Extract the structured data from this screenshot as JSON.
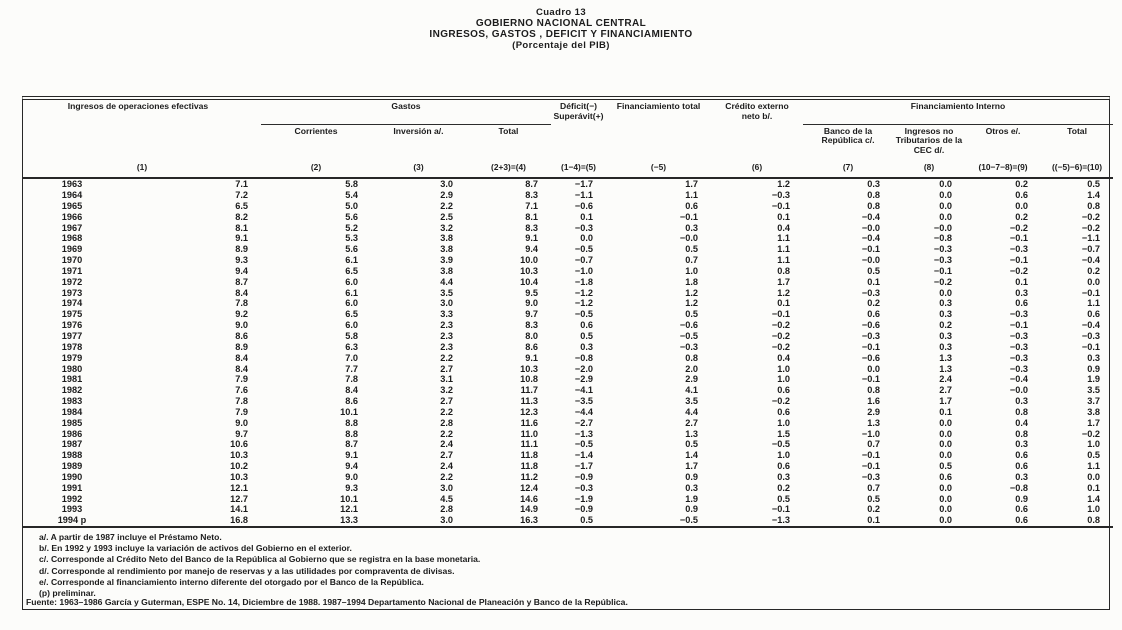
{
  "title": {
    "cuadro": "Cuadro 13",
    "org": "GOBIERNO NACIONAL CENTRAL",
    "subject": "INGRESOS, GASTOS , DEFICIT Y FINANCIAMIENTO",
    "unit": "(Porcentaje del PIB)"
  },
  "table": {
    "group_headers": {
      "gastos": "Gastos",
      "fin_interno": "Financiamiento Interno"
    },
    "headers": {
      "ingresos": "Ingresos de operaciones efectivas",
      "corrientes": "Corrientes",
      "inversion": "Inversión a/.",
      "total_gastos": "Total",
      "deficit": "Déficit(−) Superávit(+)",
      "fin_total": "Financiamiento total",
      "credito_externo": "Crédito externo neto b/.",
      "banco_rep": "Banco de la República c/.",
      "ingresos_cec": "Ingresos no Tributarios de la CEC d/.",
      "otros": "Otros e/.",
      "total_interno": "Total"
    },
    "formulas": [
      "(1)",
      "(2)",
      "(3)",
      "(2+3)=(4)",
      "(1−4)=(5)",
      "(−5)",
      "(6)",
      "(7)",
      "(8)",
      "(10−7−8)=(9)",
      "((−5)−6)=(10)"
    ],
    "rows": [
      [
        "1963",
        "7.1",
        "5.8",
        "3.0",
        "8.7",
        "−1.7",
        "1.7",
        "1.2",
        "0.3",
        "0.0",
        "0.2",
        "0.5"
      ],
      [
        "1964",
        "7.2",
        "5.4",
        "2.9",
        "8.3",
        "−1.1",
        "1.1",
        "−0.3",
        "0.8",
        "0.0",
        "0.6",
        "1.4"
      ],
      [
        "1965",
        "6.5",
        "5.0",
        "2.2",
        "7.1",
        "−0.6",
        "0.6",
        "−0.1",
        "0.8",
        "0.0",
        "0.0",
        "0.8"
      ],
      [
        "1966",
        "8.2",
        "5.6",
        "2.5",
        "8.1",
        "0.1",
        "−0.1",
        "0.1",
        "−0.4",
        "0.0",
        "0.2",
        "−0.2"
      ],
      [
        "1967",
        "8.1",
        "5.2",
        "3.2",
        "8.3",
        "−0.3",
        "0.3",
        "0.4",
        "−0.0",
        "−0.0",
        "−0.2",
        "−0.2"
      ],
      [
        "1968",
        "9.1",
        "5.3",
        "3.8",
        "9.1",
        "0.0",
        "−0.0",
        "1.1",
        "−0.4",
        "−0.8",
        "−0.1",
        "−1.1"
      ],
      [
        "1969",
        "8.9",
        "5.6",
        "3.8",
        "9.4",
        "−0.5",
        "0.5",
        "1.1",
        "−0.1",
        "−0.3",
        "−0.3",
        "−0.7"
      ],
      [
        "1970",
        "9.3",
        "6.1",
        "3.9",
        "10.0",
        "−0.7",
        "0.7",
        "1.1",
        "−0.0",
        "−0.3",
        "−0.1",
        "−0.4"
      ],
      [
        "1971",
        "9.4",
        "6.5",
        "3.8",
        "10.3",
        "−1.0",
        "1.0",
        "0.8",
        "0.5",
        "−0.1",
        "−0.2",
        "0.2"
      ],
      [
        "1972",
        "8.7",
        "6.0",
        "4.4",
        "10.4",
        "−1.8",
        "1.8",
        "1.7",
        "0.1",
        "−0.2",
        "0.1",
        "0.0"
      ],
      [
        "1973",
        "8.4",
        "6.1",
        "3.5",
        "9.5",
        "−1.2",
        "1.2",
        "1.2",
        "−0.3",
        "0.0",
        "0.3",
        "−0.1"
      ],
      [
        "1974",
        "7.8",
        "6.0",
        "3.0",
        "9.0",
        "−1.2",
        "1.2",
        "0.1",
        "0.2",
        "0.3",
        "0.6",
        "1.1"
      ],
      [
        "1975",
        "9.2",
        "6.5",
        "3.3",
        "9.7",
        "−0.5",
        "0.5",
        "−0.1",
        "0.6",
        "0.3",
        "−0.3",
        "0.6"
      ],
      [
        "1976",
        "9.0",
        "6.0",
        "2.3",
        "8.3",
        "0.6",
        "−0.6",
        "−0.2",
        "−0.6",
        "0.2",
        "−0.1",
        "−0.4"
      ],
      [
        "1977",
        "8.6",
        "5.8",
        "2.3",
        "8.0",
        "0.5",
        "−0.5",
        "−0.2",
        "−0.3",
        "0.3",
        "−0.3",
        "−0.3"
      ],
      [
        "1978",
        "8.9",
        "6.3",
        "2.3",
        "8.6",
        "0.3",
        "−0.3",
        "−0.2",
        "−0.1",
        "0.3",
        "−0.3",
        "−0.1"
      ],
      [
        "1979",
        "8.4",
        "7.0",
        "2.2",
        "9.1",
        "−0.8",
        "0.8",
        "0.4",
        "−0.6",
        "1.3",
        "−0.3",
        "0.3"
      ],
      [
        "1980",
        "8.4",
        "7.7",
        "2.7",
        "10.3",
        "−2.0",
        "2.0",
        "1.0",
        "0.0",
        "1.3",
        "−0.3",
        "0.9"
      ],
      [
        "1981",
        "7.9",
        "7.8",
        "3.1",
        "10.8",
        "−2.9",
        "2.9",
        "1.0",
        "−0.1",
        "2.4",
        "−0.4",
        "1.9"
      ],
      [
        "1982",
        "7.6",
        "8.4",
        "3.2",
        "11.7",
        "−4.1",
        "4.1",
        "0.6",
        "0.8",
        "2.7",
        "−0.0",
        "3.5"
      ],
      [
        "1983",
        "7.8",
        "8.6",
        "2.7",
        "11.3",
        "−3.5",
        "3.5",
        "−0.2",
        "1.6",
        "1.7",
        "0.3",
        "3.7"
      ],
      [
        "1984",
        "7.9",
        "10.1",
        "2.2",
        "12.3",
        "−4.4",
        "4.4",
        "0.6",
        "2.9",
        "0.1",
        "0.8",
        "3.8"
      ],
      [
        "1985",
        "9.0",
        "8.8",
        "2.8",
        "11.6",
        "−2.7",
        "2.7",
        "1.0",
        "1.3",
        "0.0",
        "0.4",
        "1.7"
      ],
      [
        "1986",
        "9.7",
        "8.8",
        "2.2",
        "11.0",
        "−1.3",
        "1.3",
        "1.5",
        "−1.0",
        "0.0",
        "0.8",
        "−0.2"
      ],
      [
        "1987",
        "10.6",
        "8.7",
        "2.4",
        "11.1",
        "−0.5",
        "0.5",
        "−0.5",
        "0.7",
        "0.0",
        "0.3",
        "1.0"
      ],
      [
        "1988",
        "10.3",
        "9.1",
        "2.7",
        "11.8",
        "−1.4",
        "1.4",
        "1.0",
        "−0.1",
        "0.0",
        "0.6",
        "0.5"
      ],
      [
        "1989",
        "10.2",
        "9.4",
        "2.4",
        "11.8",
        "−1.7",
        "1.7",
        "0.6",
        "−0.1",
        "0.5",
        "0.6",
        "1.1"
      ],
      [
        "1990",
        "10.3",
        "9.0",
        "2.2",
        "11.2",
        "−0.9",
        "0.9",
        "0.3",
        "−0.3",
        "0.6",
        "0.3",
        "0.0"
      ],
      [
        "1991",
        "12.1",
        "9.3",
        "3.0",
        "12.4",
        "−0.3",
        "0.3",
        "0.2",
        "0.7",
        "0.0",
        "−0.8",
        "0.1"
      ],
      [
        "1992",
        "12.7",
        "10.1",
        "4.5",
        "14.6",
        "−1.9",
        "1.9",
        "0.5",
        "0.5",
        "0.0",
        "0.9",
        "1.4"
      ],
      [
        "1993",
        "14.1",
        "12.1",
        "2.8",
        "14.9",
        "−0.9",
        "0.9",
        "−0.1",
        "0.2",
        "0.0",
        "0.6",
        "1.0"
      ],
      [
        "1994 p",
        "16.8",
        "13.3",
        "3.0",
        "16.3",
        "0.5",
        "−0.5",
        "−1.3",
        "0.1",
        "0.0",
        "0.6",
        "0.8"
      ]
    ]
  },
  "footnotes": [
    "a/. A partir de 1987 incluye el Préstamo Neto.",
    "b/. En 1992 y 1993 incluye la variación de activos del Gobierno en el exterior.",
    "c/. Corresponde al Crédito Neto del Banco de la República al Gobierno que se registra en la base monetaria.",
    "d/. Corresponde al rendimiento por manejo de reservas y a las utilidades por compraventa de divisas.",
    "e/. Corresponde al financiamiento interno diferente del otorgado por el Banco de la República.",
    "(p) preliminar."
  ],
  "source": "Fuente: 1963–1986 García y Guterman, ESPE No. 14, Diciembre de 1988.   1987–1994 Departamento Nacional de Planeación y Banco de la República."
}
